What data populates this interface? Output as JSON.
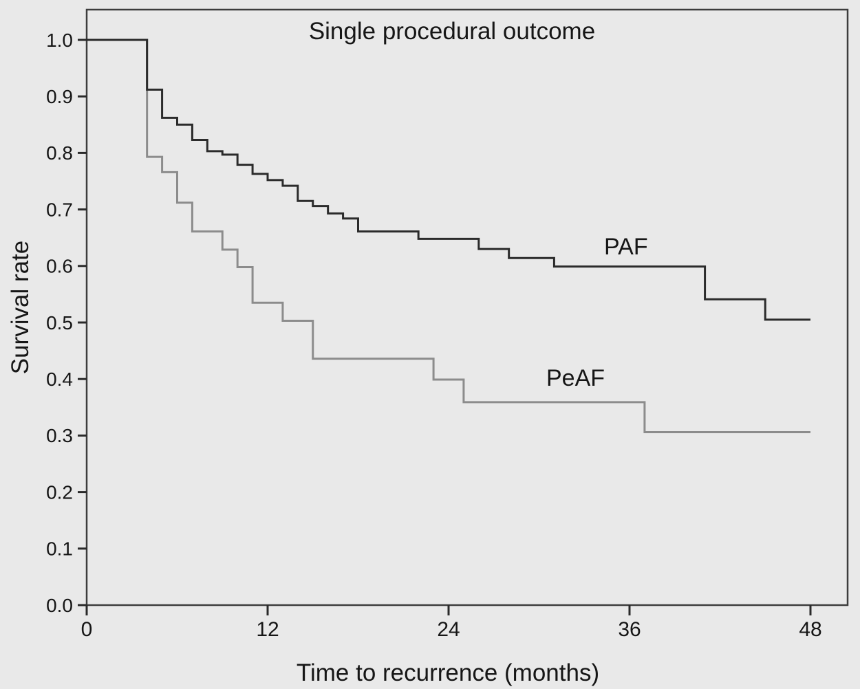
{
  "title": "Single procedural outcome",
  "x_axis": {
    "label": "Time to recurrence (months)",
    "min": 0,
    "max": 48,
    "ticks": [
      0,
      12,
      24,
      36,
      48
    ]
  },
  "y_axis": {
    "label": "Survival rate",
    "min": 0.0,
    "max": 1.0,
    "ticks": [
      1.0,
      0.9,
      0.8,
      0.7,
      0.6,
      0.5,
      0.4,
      0.3,
      0.2,
      0.1,
      0.0
    ],
    "tick_decimals": 1
  },
  "colors": {
    "background": "#e9e9e9",
    "frame": "#3d3d3d",
    "tick": "#2a2a2a",
    "text": "#161616",
    "paf_line": "#2b2b2b",
    "peaf_line": "#8c8c8c"
  },
  "chart_data": {
    "type": "line",
    "style": "kaplan-meier-step",
    "title": "Single procedural outcome",
    "xlabel": "Time to recurrence (months)",
    "ylabel": "Survival rate",
    "xlim": [
      0,
      48
    ],
    "ylim": [
      0.0,
      1.0
    ],
    "grid": false,
    "legend_position": "inline-labels-on-plot",
    "series": [
      {
        "name": "PAF",
        "color": "#2b2b2b",
        "end_x": 48,
        "points": [
          [
            0,
            1.0
          ],
          [
            4,
            0.912
          ],
          [
            5,
            0.862
          ],
          [
            6,
            0.85
          ],
          [
            7,
            0.823
          ],
          [
            8,
            0.803
          ],
          [
            9,
            0.797
          ],
          [
            10,
            0.779
          ],
          [
            11,
            0.763
          ],
          [
            12,
            0.752
          ],
          [
            13,
            0.742
          ],
          [
            14,
            0.715
          ],
          [
            15,
            0.706
          ],
          [
            16,
            0.693
          ],
          [
            17,
            0.684
          ],
          [
            18,
            0.661
          ],
          [
            22,
            0.648
          ],
          [
            26,
            0.63
          ],
          [
            28,
            0.614
          ],
          [
            31,
            0.599
          ],
          [
            41,
            0.541
          ],
          [
            45,
            0.505
          ]
        ]
      },
      {
        "name": "PeAF",
        "color": "#8c8c8c",
        "end_x": 48,
        "points": [
          [
            0,
            1.0
          ],
          [
            4,
            0.793
          ],
          [
            5,
            0.766
          ],
          [
            6,
            0.712
          ],
          [
            7,
            0.661
          ],
          [
            9,
            0.629
          ],
          [
            10,
            0.598
          ],
          [
            11,
            0.535
          ],
          [
            13,
            0.503
          ],
          [
            15,
            0.436
          ],
          [
            23,
            0.399
          ],
          [
            25,
            0.359
          ],
          [
            37,
            0.306
          ]
        ]
      }
    ]
  }
}
